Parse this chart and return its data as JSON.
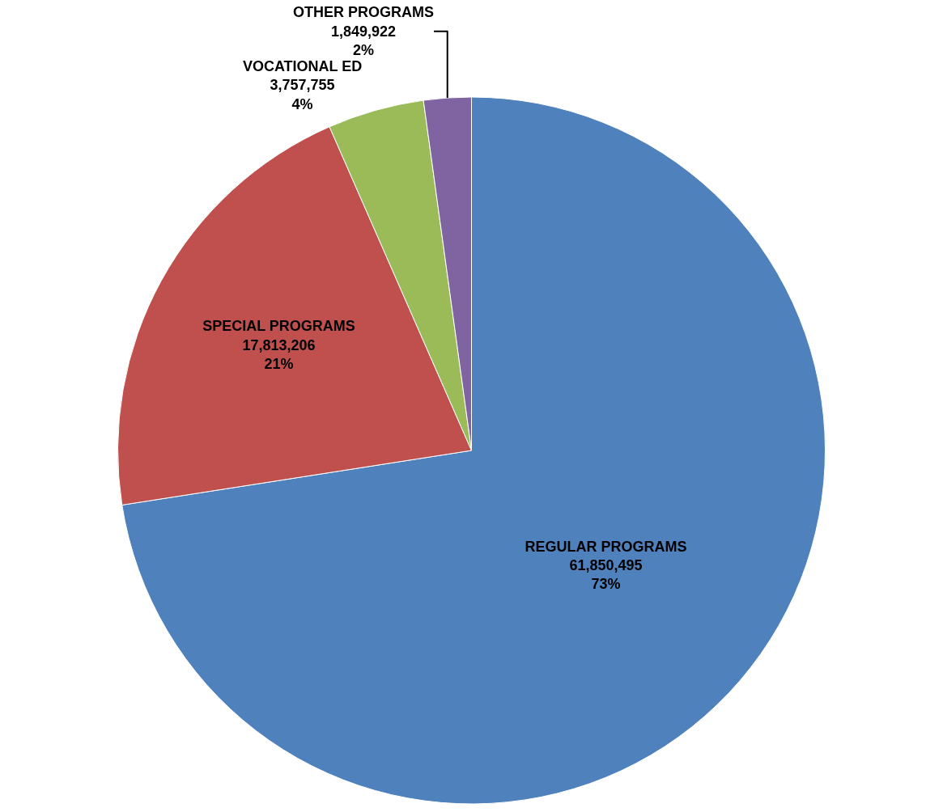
{
  "chart_data": {
    "type": "pie",
    "categories": [
      "REGULAR PROGRAMS",
      "SPECIAL PROGRAMS",
      "VOCATIONAL ED",
      "OTHER PROGRAMS"
    ],
    "values": [
      61850495,
      17813206,
      3757755,
      1849922
    ],
    "value_labels": [
      "61,850,495\n73%",
      "17,813,206\n21%",
      "3,757,755\n4%",
      "1,849,922\n2%"
    ],
    "colors": [
      "#4f81bd",
      "#c0504d",
      "#9bbb59",
      "#8064a2"
    ]
  }
}
